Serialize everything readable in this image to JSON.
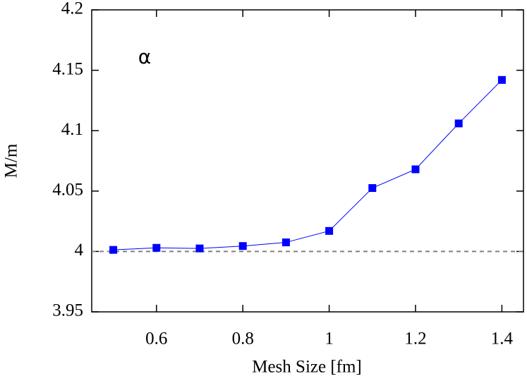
{
  "chart_data": {
    "type": "line",
    "xlabel": "Mesh Size [fm]",
    "ylabel": "M/m",
    "annotation": "α",
    "x": [
      0.5,
      0.6,
      0.7,
      0.8,
      0.9,
      1.0,
      1.1,
      1.2,
      1.3,
      1.4
    ],
    "series": [
      {
        "color": "#0000ff",
        "values": [
          4.0013,
          4.003,
          4.0025,
          4.0045,
          4.0075,
          4.017,
          4.0525,
          4.068,
          4.106,
          4.142
        ]
      }
    ],
    "reference_line": 4,
    "xlim": [
      0.45,
      1.45
    ],
    "ylim": [
      3.95,
      4.2
    ],
    "xticks": [
      0.6,
      0.8,
      1,
      1.2,
      1.4
    ],
    "yticks": [
      3.95,
      4,
      4.05,
      4.1,
      4.15,
      4.2
    ]
  }
}
